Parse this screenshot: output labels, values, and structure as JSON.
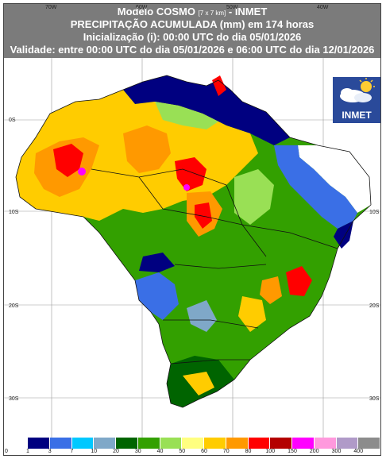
{
  "header": {
    "title_main": "Modelo COSMO",
    "title_res": "[7 x 7 km]",
    "title_src": " - INMET",
    "line2": "PRECIPITAÇÃO ACUMULADA (mm) em 174 horas",
    "line3": "Inicialização (i): 00:00 UTC do dia 05/01/2026",
    "line4": "Validade: entre 00:00 UTC do dia 05/01/2026 e 06:00 UTC do dia 12/01/2026"
  },
  "axes": {
    "lon_labels": [
      "70W",
      "60W",
      "50W",
      "40W"
    ],
    "lat_labels": [
      "0S",
      "10S",
      "20S",
      "30S"
    ]
  },
  "logo": {
    "text": "INMET"
  },
  "legend": {
    "labels": [
      "0",
      "1",
      "3",
      "7",
      "10",
      "20",
      "30",
      "40",
      "50",
      "60",
      "70",
      "80",
      "100",
      "150",
      "200",
      "300",
      "400"
    ],
    "colors": [
      "#ffffff",
      "#000080",
      "#3a6fe6",
      "#00c8ff",
      "#7fa8c8",
      "#006400",
      "#33a000",
      "#99e055",
      "#ffff80",
      "#ffcc00",
      "#ff9900",
      "#ff0000",
      "#b40000",
      "#ff00ff",
      "#ff99dd",
      "#b09ac8",
      "#8c8c8c"
    ]
  }
}
